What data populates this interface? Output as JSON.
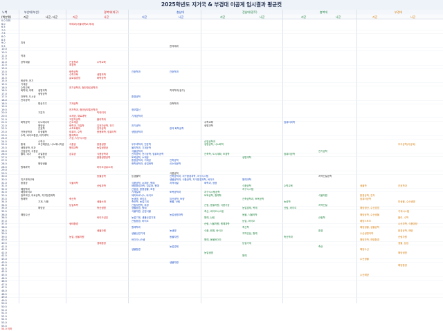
{
  "title": "2025학년도 지거국 & 부경대 이공계 입시결과 평균컷",
  "header": {
    "col0": "누백",
    "groups": [
      "부산대(부산)",
      "경북대(대구)",
      "충남대",
      "전남대(광주)",
      "충북대",
      "부경대"
    ],
    "sub": [
      "(백분위)",
      "지균",
      "나군, 다군",
      "지균",
      "나균",
      "지균",
      "나균",
      "지균",
      "나균",
      "지균",
      "나균",
      "지균",
      "나균"
    ]
  },
  "scores": [
    "0.0 이하",
    "6.0",
    "6.5",
    "7.0",
    "7.5",
    "8.0",
    "8.5",
    "9.0",
    "9.5",
    "10.0",
    "10.5",
    "11.0",
    "11.5",
    "12.0",
    "12.5",
    "13.0",
    "13.5",
    "14.0",
    "14.5",
    "15.0",
    "15.5",
    "16.0",
    "16.5",
    "17.0",
    "17.5",
    "18.0",
    "18.5",
    "19.0",
    "19.5",
    "20.0",
    "20.5",
    "21.0",
    "21.5",
    "22.0",
    "22.5",
    "23.0",
    "23.5",
    "24.0",
    "24.5",
    "25.0",
    "25.5",
    "26.0",
    "26.5",
    "27.0",
    "27.5",
    "28.0",
    "28.5",
    "29.0",
    "29.5",
    "30.0",
    "30.5",
    "31.0",
    "31.5",
    "32.0",
    "32.5",
    "33.0",
    "33.5",
    "34.0",
    "34.5",
    "35.0",
    "35.5",
    "36.0",
    "36.5",
    "37.0",
    "37.5",
    "38.0",
    "38.5",
    "39.0",
    "39.5",
    "40.0",
    "40.5",
    "41.0",
    "41.5",
    "42.0",
    "42.5",
    "43.0",
    "43.5",
    "44.0",
    "44.5",
    "45.0",
    "45.5",
    "46.0",
    "46.5",
    "47.0",
    "47.5",
    "48.0",
    "48.5",
    "49.0",
    "49.5",
    "50.0",
    "50.5",
    "51.0",
    "51.5",
    "52.0",
    "52.5",
    "53.0",
    "53.5",
    "54.0 이하"
  ],
  "entries": [
    {
      "row": 1,
      "col": 1,
      "text": "의예과(서울대학교,의대)",
      "color": "red"
    },
    {
      "row": 7,
      "col": 0,
      "text": "치의",
      "color": "black"
    },
    {
      "row": 8,
      "col": 4,
      "text": "한의예과",
      "color": "black"
    },
    {
      "row": 11,
      "col": 0,
      "text": "약대",
      "color": "black"
    },
    {
      "row": 13,
      "col": 0,
      "text": "공학계열",
      "color": "black"
    },
    {
      "row": 13,
      "col": 1,
      "text": "간호학과",
      "color": "red"
    },
    {
      "row": 13,
      "col": 2,
      "text": "수학교육",
      "color": "red"
    },
    {
      "row": 14,
      "col": 1,
      "text": "조경학",
      "color": "red"
    },
    {
      "row": 16,
      "col": 1,
      "text": "화학공학",
      "color": "red"
    },
    {
      "row": 16,
      "col": 3,
      "text": "간호학과",
      "color": "blue"
    },
    {
      "row": 16,
      "col": 4,
      "text": "간호학과",
      "color": "blue"
    },
    {
      "row": 17,
      "col": 1,
      "text": "수학교육",
      "color": "red"
    },
    {
      "row": 17,
      "col": 2,
      "text": "생명과학",
      "color": "red"
    },
    {
      "row": 18,
      "col": 1,
      "text": "글로벌경영",
      "color": "red"
    },
    {
      "row": 18,
      "col": 2,
      "text": "화학공학",
      "color": "red"
    },
    {
      "row": 19,
      "col": 0,
      "text": "화공학, 전기",
      "color": "black"
    },
    {
      "row": 20,
      "col": 0,
      "text": "기계공",
      "color": "black"
    },
    {
      "row": 21,
      "col": 0,
      "text": "수학교육",
      "color": "black"
    },
    {
      "row": 21,
      "col": 1,
      "text": "전기공학과, 첨단재료공학과",
      "color": "red"
    },
    {
      "row": 22,
      "col": 0,
      "text": "화학계, 의예",
      "color": "black"
    },
    {
      "row": 22,
      "col": 0,
      "text": "생명과학",
      "color": "black",
      "dx": 25
    },
    {
      "row": 22,
      "col": 4,
      "text": "치의학과(광주)",
      "color": "black"
    },
    {
      "row": 23,
      "col": 0,
      "text": "생명공학",
      "color": "black",
      "dx": 25
    },
    {
      "row": 24,
      "col": 0,
      "text": "건축학, 도시공",
      "color": "black"
    },
    {
      "row": 24,
      "col": 3,
      "text": "환경공학",
      "color": "blue"
    },
    {
      "row": 25,
      "col": 0,
      "text": "전자공학",
      "color": "black"
    },
    {
      "row": 26,
      "col": 0,
      "text": "항공우주",
      "color": "black",
      "dx": 25
    },
    {
      "row": 26,
      "col": 1,
      "text": "기계공학",
      "color": "red"
    },
    {
      "row": 26,
      "col": 4,
      "text": "건축학과",
      "color": "black"
    },
    {
      "row": 28,
      "col": 1,
      "text": "전자학과, 첨단정보통신학과",
      "color": "red"
    },
    {
      "row": 28,
      "col": 3,
      "text": "정보통신",
      "color": "blue"
    },
    {
      "row": 29,
      "col": 0,
      "text": "고분자",
      "color": "black",
      "dx": 25
    },
    {
      "row": 29,
      "col": 2,
      "text": "빅데이터",
      "color": "red"
    },
    {
      "row": 30,
      "col": 1,
      "text": "소재공, 재료과학",
      "color": "red"
    },
    {
      "row": 30,
      "col": 3,
      "text": "기계공학과",
      "color": "blue"
    },
    {
      "row": 31,
      "col": 1,
      "text": "고분자공학",
      "color": "red"
    },
    {
      "row": 31,
      "col": 2,
      "text": "물리학과",
      "color": "red"
    },
    {
      "row": 32,
      "col": 0,
      "text": "화학공학",
      "color": "black"
    },
    {
      "row": 32,
      "col": 0,
      "text": "나노에너지",
      "color": "black",
      "dx": 25
    },
    {
      "row": 32,
      "col": 1,
      "text": "신소재공",
      "color": "red"
    },
    {
      "row": 32,
      "col": 5,
      "text": "수학교육",
      "color": "black"
    },
    {
      "row": 32,
      "col": 7,
      "text": "컴퓨터과학",
      "color": "blue"
    },
    {
      "row": 33,
      "col": 0,
      "text": "해양공",
      "color": "black",
      "dx": 25
    },
    {
      "row": 33,
      "col": 1,
      "text": "화학과, 지질학",
      "color": "red"
    },
    {
      "row": 33,
      "col": 2,
      "text": "유전자공학, 전기",
      "color": "red"
    },
    {
      "row": 33,
      "col": 3,
      "text": "전기공학",
      "color": "blue"
    },
    {
      "row": 33,
      "col": 5,
      "text": "생명과학",
      "color": "black"
    },
    {
      "row": 34,
      "col": 0,
      "text": "간호학",
      "color": "black",
      "dx": 25
    },
    {
      "row": 34,
      "col": 1,
      "text": "소프트웨어",
      "color": "red"
    },
    {
      "row": 34,
      "col": 2,
      "text": "전자공학",
      "color": "red"
    },
    {
      "row": 34,
      "col": 4,
      "text": "한의 화학공학",
      "color": "blue"
    },
    {
      "row": 35,
      "col": 0,
      "text": "건축공학과",
      "color": "black"
    },
    {
      "row": 35,
      "col": 0,
      "text": "미생물학",
      "color": "black",
      "dx": 25
    },
    {
      "row": 35,
      "col": 1,
      "text": "컴퓨터, 수학",
      "color": "red"
    },
    {
      "row": 35,
      "col": 2,
      "text": "응용화학, 컴퓨터학",
      "color": "red"
    },
    {
      "row": 35,
      "col": 3,
      "text": "생명공학과",
      "color": "blue"
    },
    {
      "row": 36,
      "col": 0,
      "text": "수학, 바이오환경, 대기과학",
      "color": "black"
    },
    {
      "row": 36,
      "col": 1,
      "text": "통계학과",
      "color": "red"
    },
    {
      "row": 37,
      "col": 1,
      "text": "기상, 지구시스템",
      "color": "red"
    },
    {
      "row": 38,
      "col": 0,
      "text": "수학교",
      "color": "black",
      "dx": 25
    },
    {
      "row": 38,
      "col": 5,
      "text": "산업공학과",
      "color": "green"
    },
    {
      "row": 39,
      "col": 0,
      "text": "통계",
      "color": "black"
    },
    {
      "row": 39,
      "col": 0,
      "text": "조선해양공, 나노에너지공",
      "color": "black",
      "dx": 25
    },
    {
      "row": 39,
      "col": 1,
      "text": "식품공",
      "color": "red"
    },
    {
      "row": 39,
      "col": 2,
      "text": "응용생명",
      "color": "red"
    },
    {
      "row": 39,
      "col": 3,
      "text": "우주과학과, 천문학",
      "color": "blue"
    },
    {
      "row": 39,
      "col": 5,
      "text": "생명공학, 나노화학",
      "color": "green"
    },
    {
      "row": 39,
      "col": 10,
      "text": "우주공학(이공계)",
      "color": "orange"
    },
    {
      "row": 40,
      "col": 0,
      "text": "생명공학, 의과",
      "color": "black"
    },
    {
      "row": 40,
      "col": 1,
      "text": "원예과학",
      "color": "red"
    },
    {
      "row": 40,
      "col": 2,
      "text": "농업생명공",
      "color": "red"
    },
    {
      "row": 40,
      "col": 3,
      "text": "물리학과, 기계공학",
      "color": "blue"
    },
    {
      "row": 41,
      "col": 0,
      "text": "산업공학, 식품공",
      "color": "black"
    },
    {
      "row": 41,
      "col": 3,
      "text": "식물공학과",
      "color": "blue"
    },
    {
      "row": 41,
      "col": 8,
      "text": "전기공학",
      "color": "green"
    },
    {
      "row": 42,
      "col": 0,
      "text": "물리, 대기",
      "color": "black"
    },
    {
      "row": 42,
      "col": 0,
      "text": "지질환경",
      "color": "black",
      "dx": 25
    },
    {
      "row": 42,
      "col": 1,
      "text": "섬유공",
      "color": "red"
    },
    {
      "row": 42,
      "col": 2,
      "text": "식품공학과",
      "color": "red"
    },
    {
      "row": 42,
      "col": 3,
      "text": "전자공학, 전기공학, 컴퓨터공학",
      "color": "blue"
    },
    {
      "row": 42,
      "col": 5,
      "text": "건축학, 도시계획, 조경학",
      "color": "green"
    },
    {
      "row": 42,
      "col": 7,
      "text": "컴퓨터공학",
      "color": "green"
    },
    {
      "row": 43,
      "col": 0,
      "text": "에너지",
      "color": "black",
      "dx": 25
    },
    {
      "row": 43,
      "col": 2,
      "text": "응용생명공학",
      "color": "red"
    },
    {
      "row": 43,
      "col": 3,
      "text": "토목공학, 소재공",
      "color": "blue"
    },
    {
      "row": 43,
      "col": 6,
      "text": "생명과학",
      "color": "green"
    },
    {
      "row": 44,
      "col": 3,
      "text": "환경공학과, 기계공",
      "color": "blue"
    },
    {
      "row": 44,
      "col": 4,
      "text": "건축공학",
      "color": "blue"
    },
    {
      "row": 45,
      "col": 0,
      "text": "해양생물",
      "color": "black",
      "dx": 25
    },
    {
      "row": 45,
      "col": 3,
      "text": "화학공학과, 공업화학",
      "color": "blue"
    },
    {
      "row": 45,
      "col": 4,
      "text": "신소재공학",
      "color": "blue"
    },
    {
      "row": 46,
      "col": 0,
      "text": "원예과학",
      "color": "black"
    },
    {
      "row": 46,
      "col": 2,
      "text": "바이오섬유소재",
      "color": "red"
    },
    {
      "row": 48,
      "col": 4,
      "text": "식품공학",
      "color": "black"
    },
    {
      "row": 49,
      "col": 2,
      "text": "동물공학",
      "color": "red"
    },
    {
      "row": 49,
      "col": 3,
      "text": "농생물학",
      "color": "black"
    },
    {
      "row": 49,
      "col": 4,
      "text": "건축공학과, 지구환경과학, 지구시스템",
      "color": "blue"
    },
    {
      "row": 49,
      "col": 8,
      "text": "지역건설공학",
      "color": "black"
    },
    {
      "row": 50,
      "col": 0,
      "text": "지구과학교육",
      "color": "black"
    },
    {
      "row": 50,
      "col": 4,
      "text": "생물공학과, 식품공학, 지구환경과학, 바이오",
      "color": "blue"
    },
    {
      "row": 50,
      "col": 6,
      "text": "원예과학",
      "color": "blue"
    },
    {
      "row": 51,
      "col": 0,
      "text": "환경공",
      "color": "black"
    },
    {
      "row": 51,
      "col": 1,
      "text": "식물의학",
      "color": "red"
    },
    {
      "row": 51,
      "col": 3,
      "text": "식품공학, 소재공, 원예",
      "color": "blue"
    },
    {
      "row": 51,
      "col": 4,
      "text": "지역개발",
      "color": "blue"
    },
    {
      "row": 51,
      "col": 5,
      "text": "화학과, 생명",
      "color": "blue"
    },
    {
      "row": 52,
      "col": 2,
      "text": "산림과학",
      "color": "red"
    },
    {
      "row": 52,
      "col": 3,
      "text": "해양환경과학, 섬유공, 원예",
      "color": "blue"
    },
    {
      "row": 52,
      "col": 6,
      "text": "식품공학",
      "color": "green"
    },
    {
      "row": 52,
      "col": 7,
      "text": "수학교육",
      "color": "green"
    },
    {
      "row": 52,
      "col": 9,
      "text": "생물학",
      "color": "orange"
    },
    {
      "row": 52,
      "col": 10,
      "text": "간호학과",
      "color": "orange"
    },
    {
      "row": 53,
      "col": 0,
      "text": "해양학과",
      "color": "black"
    },
    {
      "row": 53,
      "col": 3,
      "text": "산업공, 응용생물, 조경",
      "color": "blue"
    },
    {
      "row": 53,
      "col": 6,
      "text": "지구시스템",
      "color": "green"
    },
    {
      "row": 54,
      "col": 0,
      "text": "해양바이오",
      "color": "black"
    },
    {
      "row": 54,
      "col": 3,
      "text": "기계설계",
      "color": "blue"
    },
    {
      "row": 54,
      "col": 4,
      "text": "토목공학과",
      "color": "blue"
    },
    {
      "row": 54,
      "col": 5,
      "text": "지구시스템공학",
      "color": "green"
    },
    {
      "row": 55,
      "col": 0,
      "text": "정보보안, 의료공학, 지구환경과학",
      "color": "black"
    },
    {
      "row": 55,
      "col": 3,
      "text": "메카트로닉스, 바이오",
      "color": "blue"
    },
    {
      "row": 55,
      "col": 5,
      "text": "토목공학, 원예학",
      "color": "green"
    },
    {
      "row": 55,
      "col": 8,
      "text": "식물자원",
      "color": "green"
    },
    {
      "row": 55,
      "col": 9,
      "text": "환경공학, 전자",
      "color": "orange"
    },
    {
      "row": 56,
      "col": 0,
      "text": "항해학",
      "color": "black"
    },
    {
      "row": 56,
      "col": 1,
      "text": "축산학",
      "color": "red"
    },
    {
      "row": 56,
      "col": 3,
      "text": "농생명, 바이오",
      "color": "blue"
    },
    {
      "row": 56,
      "col": 4,
      "text": "임산공학, 토양",
      "color": "blue"
    },
    {
      "row": 56,
      "col": 6,
      "text": "건축공학과, 토목공학",
      "color": "green"
    },
    {
      "row": 56,
      "col": 9,
      "text": "컴퓨터공학",
      "color": "orange"
    },
    {
      "row": 57,
      "col": 0,
      "text": "기계, 식품",
      "color": "black",
      "dx": 25
    },
    {
      "row": 57,
      "col": 2,
      "text": "생물소재",
      "color": "red"
    },
    {
      "row": 57,
      "col": 3,
      "text": "축산학, 농업기계",
      "color": "blue"
    },
    {
      "row": 57,
      "col": 4,
      "text": "동물, 산림",
      "color": "blue"
    },
    {
      "row": 57,
      "col": 7,
      "text": "농공학",
      "color": "green"
    },
    {
      "row": 57,
      "col": 10,
      "text": "미생물, 수산생명",
      "color": "orange"
    },
    {
      "row": 58,
      "col": 1,
      "text": "농업토목",
      "color": "red"
    },
    {
      "row": 58,
      "col": 3,
      "text": "산림자원학, 조경",
      "color": "blue"
    },
    {
      "row": 58,
      "col": 5,
      "text": "산림, 동물자원, 식품가공",
      "color": "green"
    },
    {
      "row": 58,
      "col": 8,
      "text": "지역건설",
      "color": "green"
    },
    {
      "row": 59,
      "col": 0,
      "text": "해양공",
      "color": "black",
      "dx": 25
    },
    {
      "row": 59,
      "col": 2,
      "text": "축산생명",
      "color": "red"
    },
    {
      "row": 59,
      "col": 3,
      "text": "생물환경, 원예",
      "color": "blue"
    },
    {
      "row": 59,
      "col": 6,
      "text": "농업경제, 목재",
      "color": "green"
    },
    {
      "row": 59,
      "col": 7,
      "text": "산림, 바이오",
      "color": "green"
    },
    {
      "row": 59,
      "col": 9,
      "text": "해양생산, 수산경영",
      "color": "orange"
    },
    {
      "row": 60,
      "col": 3,
      "text": "식물자원, 산업식물",
      "color": "blue"
    },
    {
      "row": 60,
      "col": 5,
      "text": "축산, 바이오시스템",
      "color": "green"
    },
    {
      "row": 60,
      "col": 10,
      "text": "기계시스템",
      "color": "orange"
    },
    {
      "row": 61,
      "col": 0,
      "text": "해양수산",
      "color": "black"
    },
    {
      "row": 61,
      "col": 4,
      "text": "농업생명과학",
      "color": "blue"
    },
    {
      "row": 61,
      "col": 6,
      "text": "동물, 식물의학",
      "color": "green"
    },
    {
      "row": 61,
      "col": 9,
      "text": "해양공학, 수산생물",
      "color": "orange"
    },
    {
      "row": 62,
      "col": 2,
      "text": "바이오섬유",
      "color": "red"
    },
    {
      "row": 62,
      "col": 3,
      "text": "농업기계, 생물산업기계",
      "color": "blue"
    },
    {
      "row": 62,
      "col": 5,
      "text": "원예, 산림",
      "color": "green"
    },
    {
      "row": 62,
      "col": 8,
      "text": "산림학",
      "color": "green"
    },
    {
      "row": 62,
      "col": 10,
      "text": "물리, 수학",
      "color": "orange"
    },
    {
      "row": 63,
      "col": 3,
      "text": "산림환경, 바이오",
      "color": "blue"
    },
    {
      "row": 63,
      "col": 6,
      "text": "농업, 바이오",
      "color": "green"
    },
    {
      "row": 63,
      "col": 9,
      "text": "해양스포츠",
      "color": "orange"
    },
    {
      "row": 64,
      "col": 1,
      "text": "생태환경",
      "color": "red"
    },
    {
      "row": 64,
      "col": 5,
      "text": "산림, 식물자원, 원예과학",
      "color": "green"
    },
    {
      "row": 64,
      "col": 10,
      "text": "수산과학, 식품영양",
      "color": "orange"
    },
    {
      "row": 65,
      "col": 3,
      "text": "원예학과",
      "color": "blue"
    },
    {
      "row": 65,
      "col": 6,
      "text": "축산학",
      "color": "green"
    },
    {
      "row": 65,
      "col": 9,
      "text": "해양생물, 생물공학",
      "color": "orange"
    },
    {
      "row": 66,
      "col": 2,
      "text": "생물자원",
      "color": "red"
    },
    {
      "row": 66,
      "col": 4,
      "text": "농생명",
      "color": "blue"
    },
    {
      "row": 66,
      "col": 5,
      "text": "식품, 원예, 바이오",
      "color": "green"
    },
    {
      "row": 66,
      "col": 8,
      "text": "환경",
      "color": "green"
    },
    {
      "row": 66,
      "col": 10,
      "text": "환경공학, 해양",
      "color": "orange"
    },
    {
      "row": 67,
      "col": 3,
      "text": "생물산업기계",
      "color": "blue"
    },
    {
      "row": 67,
      "col": 6,
      "text": "지역건설, 원예",
      "color": "green"
    },
    {
      "row": 67,
      "col": 9,
      "text": "수산생명의학",
      "color": "orange"
    },
    {
      "row": 68,
      "col": 1,
      "text": "농업, 생물자원",
      "color": "red"
    },
    {
      "row": 68,
      "col": 4,
      "text": "동물자원",
      "color": "blue"
    },
    {
      "row": 68,
      "col": 7,
      "text": "축산학과",
      "color": "green"
    },
    {
      "row": 68,
      "col": 10,
      "text": "산림자원",
      "color": "orange"
    },
    {
      "row": 69,
      "col": 3,
      "text": "바이오시스템",
      "color": "blue"
    },
    {
      "row": 69,
      "col": 5,
      "text": "원예, 동물바이오",
      "color": "green"
    },
    {
      "row": 69,
      "col": 9,
      "text": "해양과학, 해양환경",
      "color": "orange"
    },
    {
      "row": 70,
      "col": 2,
      "text": "생태환경",
      "color": "red"
    },
    {
      "row": 70,
      "col": 6,
      "text": "농업기계",
      "color": "green"
    },
    {
      "row": 70,
      "col": 10,
      "text": "생물, 농업",
      "color": "orange"
    },
    {
      "row": 71,
      "col": 4,
      "text": "농업경제",
      "color": "blue"
    },
    {
      "row": 71,
      "col": 8,
      "text": "축산",
      "color": "green"
    },
    {
      "row": 72,
      "col": 3,
      "text": "생물환경",
      "color": "blue"
    },
    {
      "row": 72,
      "col": 9,
      "text": "해양수산",
      "color": "orange"
    },
    {
      "row": 73,
      "col": 5,
      "text": "농업생명",
      "color": "green"
    },
    {
      "row": 73,
      "col": 10,
      "text": "해양생명",
      "color": "orange"
    },
    {
      "row": 74,
      "col": 6,
      "text": "원예",
      "color": "green"
    },
    {
      "row": 75,
      "col": 9,
      "text": "수산생물",
      "color": "orange"
    },
    {
      "row": 76,
      "col": 4,
      "text": "생물자원",
      "color": "blue"
    },
    {
      "row": 77,
      "col": 10,
      "text": "해양환경",
      "color": "orange"
    },
    {
      "row": 80,
      "col": 9,
      "text": "수산해양",
      "color": "orange"
    }
  ]
}
